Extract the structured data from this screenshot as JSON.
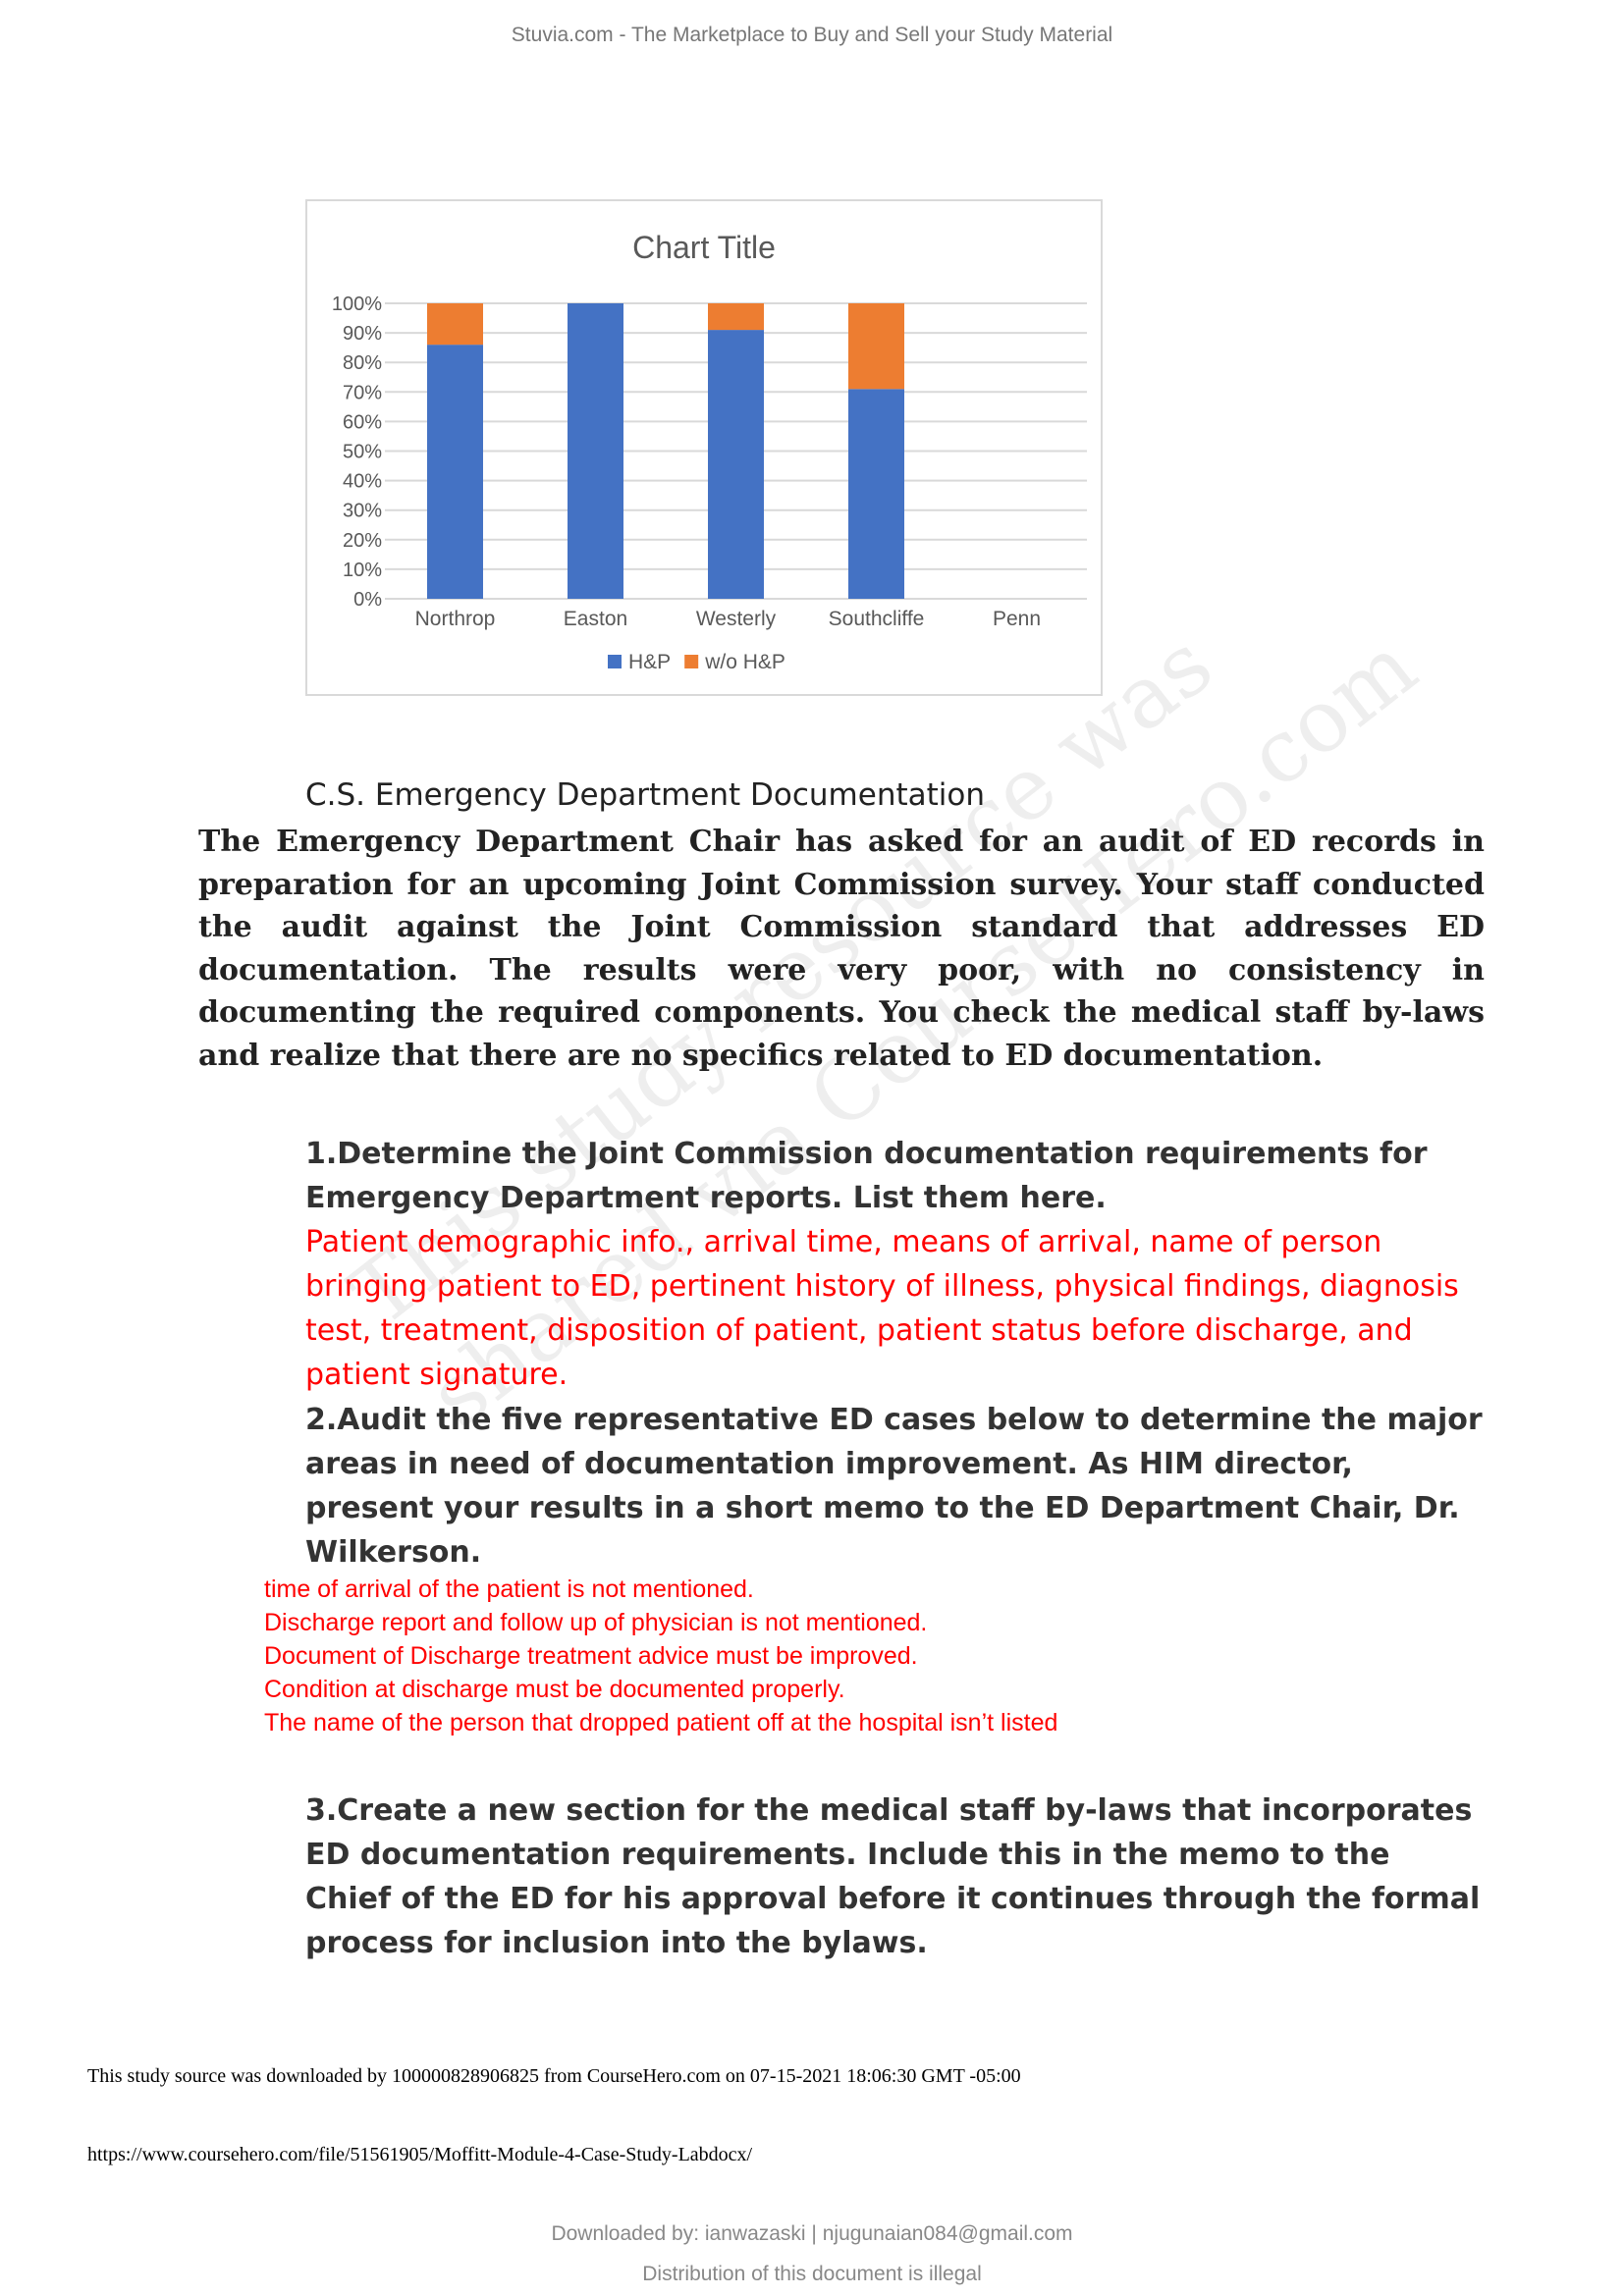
{
  "header": {
    "text": "Stuvia.com - The Marketplace to Buy and Sell your Study Material"
  },
  "chart_data": {
    "type": "bar",
    "stacked": true,
    "percent": true,
    "title": "Chart Title",
    "categories": [
      "Northrop",
      "Easton",
      "Westerly",
      "Southcliffe",
      "Penn"
    ],
    "series": [
      {
        "name": "H&P",
        "color": "#4472c4",
        "values": [
          86,
          100,
          91,
          71,
          0
        ]
      },
      {
        "name": "w/o H&P",
        "color": "#ed7d31",
        "values": [
          14,
          0,
          9,
          29,
          0
        ]
      }
    ],
    "yticks": [
      "0%",
      "10%",
      "20%",
      "30%",
      "40%",
      "50%",
      "60%",
      "70%",
      "80%",
      "90%",
      "100%"
    ],
    "ylim": [
      0,
      100
    ],
    "grid": true,
    "legend": "bottom"
  },
  "document": {
    "case_title": "C.S. Emergency Department Documentation",
    "intro": "The Emergency Department Chair has asked for an audit of ED records in preparation for an upcoming Joint Commission survey. Your staff conducted the audit against the Joint Commission standard that addresses ED documentation. The results were very poor, with no consistency in documenting the required components. You check the medical staff by-laws and realize that there are no specifics related to ED documentation.",
    "q1": "1.Determine the Joint Commission documentation requirements for Emergency Department reports. List them here.",
    "a1": "Patient demographic info., arrival time, means of arrival, name of person bringing patient to ED, pertinent history of illness, physical findings, diagnosis test, treatment, disposition of patient, patient status before discharge, and patient signature.",
    "q2": "2.Audit the five representative ED cases below to determine the major areas in need of documentation improvement. As HIM director, present your results in a short memo to the ED Department Chair, Dr. Wilkerson.",
    "findings": [
      "time of arrival of the patient is not mentioned.",
      "Discharge report and follow up of physician is not mentioned.",
      "Document of Discharge treatment advice must be improved.",
      "Condition at discharge must be documented properly.",
      "The name of the person that dropped patient off at the hospital isn’t listed"
    ],
    "q3": "3.Create a new section for the medical staff by-laws that incorporates ED documentation requirements. Include this in the memo to the Chief of the ED for his approval before it continues through the formal process for inclusion into the bylaws."
  },
  "watermark": {
    "line1": "This study resource was",
    "line2": "shared via CourseHero.com"
  },
  "footer": {
    "source": "This study source was downloaded by 100000828906825 from CourseHero.com on 07-15-2021 18:06:30 GMT -05:00",
    "url": "https://www.coursehero.com/file/51561905/Moffitt-Module-4-Case-Study-Labdocx/",
    "downloaded_by": "Downloaded by: ianwazaski | njugunaian084@gmail.com",
    "distribution": "Distribution of this document is illegal"
  }
}
